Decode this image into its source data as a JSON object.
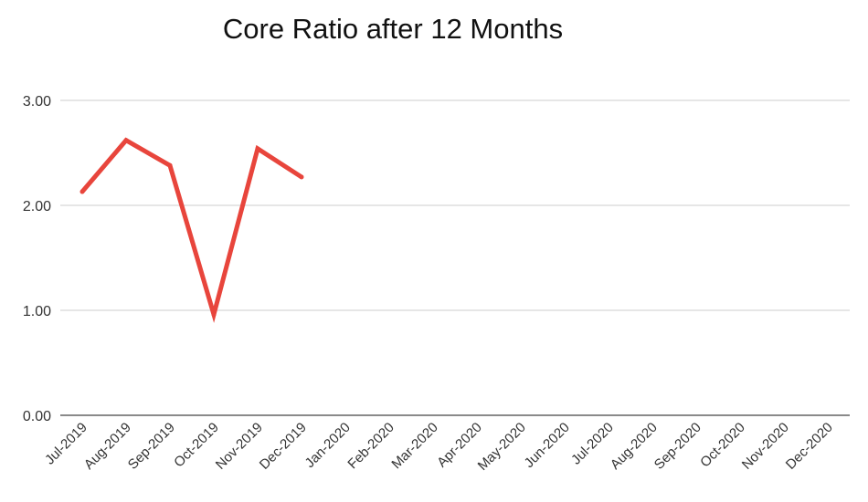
{
  "chart_data": {
    "type": "line",
    "title": "Core Ratio after 12 Months",
    "xlabel": "",
    "ylabel": "",
    "categories": [
      "Jul-2019",
      "Aug-2019",
      "Sep-2019",
      "Oct-2019",
      "Nov-2019",
      "Dec-2019",
      "Jan-2020",
      "Feb-2020",
      "Mar-2020",
      "Apr-2020",
      "May-2020",
      "Jun-2020",
      "Jul-2020",
      "Aug-2020",
      "Sep-2020",
      "Oct-2020",
      "Nov-2020",
      "Dec-2020"
    ],
    "series": [
      {
        "values": [
          2.13,
          2.62,
          2.38,
          0.96,
          2.54,
          2.27,
          null,
          null,
          null,
          null,
          null,
          null,
          null,
          null,
          null,
          null,
          null,
          null
        ],
        "color": "#e8453c"
      }
    ],
    "yticks": [
      "0.00",
      "1.00",
      "2.00",
      "3.00"
    ],
    "ylim": [
      0,
      3
    ],
    "grid": true,
    "legend": "none"
  }
}
